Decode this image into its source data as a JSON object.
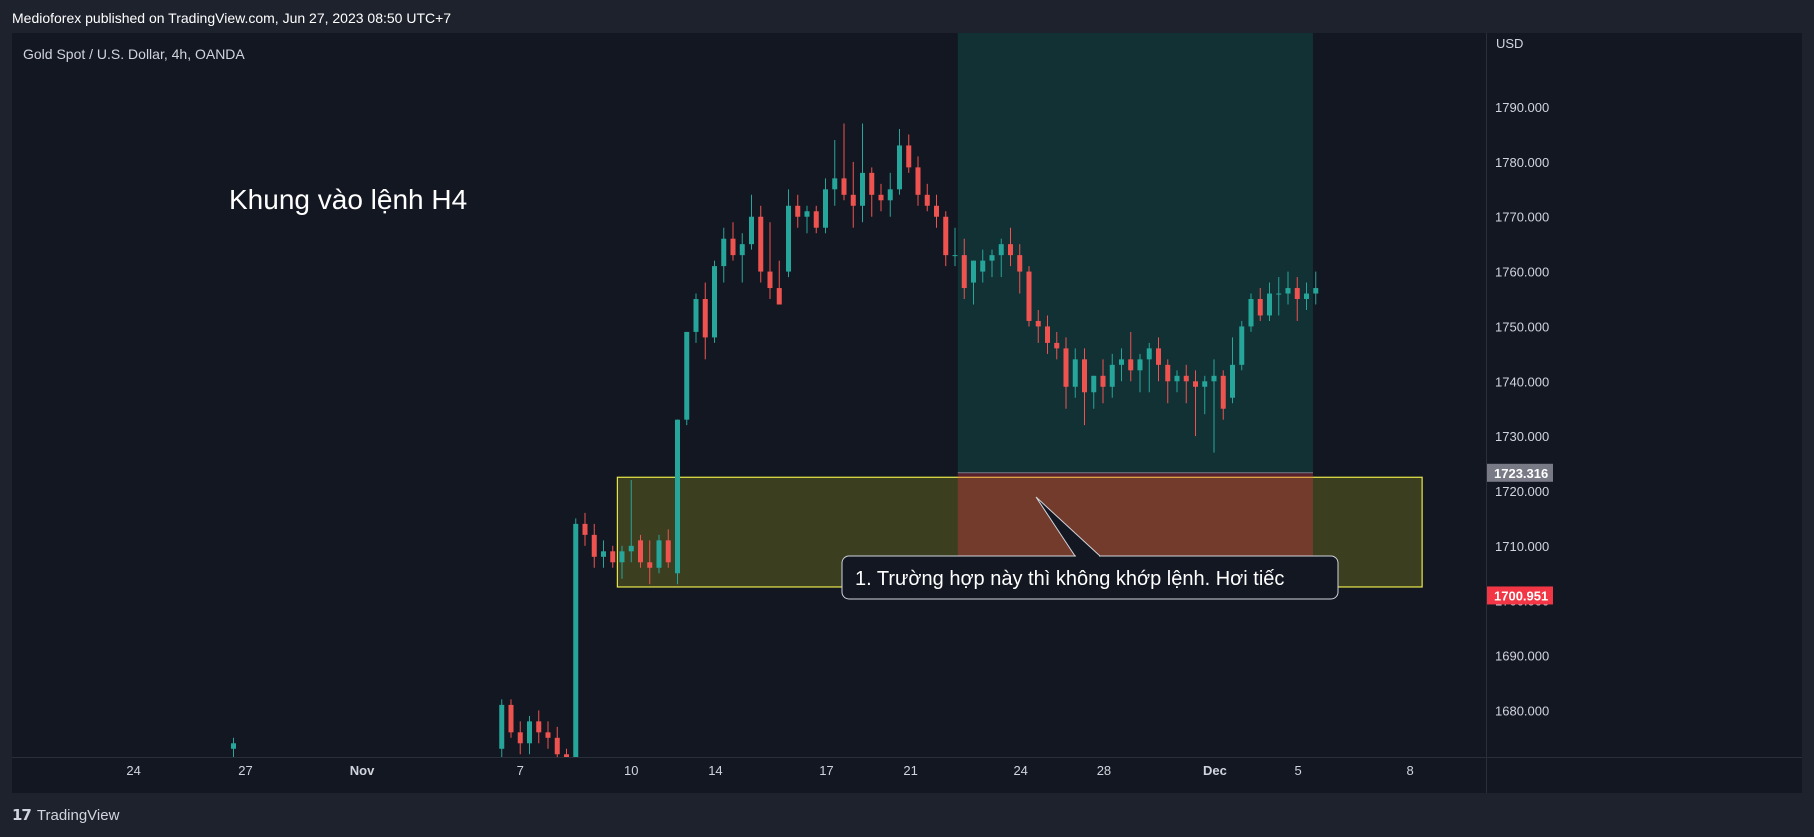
{
  "header": {
    "publisher_line": "Medioforex published on TradingView.com, Jun 27, 2023 08:50 UTC+7"
  },
  "footer": {
    "brand": "TradingView",
    "brand_icon": "tradingview-logo-icon"
  },
  "chart_data": {
    "type": "candlestick",
    "symbol_line": "Gold Spot / U.S. Dollar, 4h, OANDA",
    "currency_label": "USD",
    "overlay_title": "Khung vào lệnh H4",
    "callout_text": "1. Trường hợp này thì không khớp lệnh. Hơi tiếc",
    "ylim": [
      1671.5,
      1803.5
    ],
    "y_ticks": [
      {
        "value": 1680,
        "label": "1680.000"
      },
      {
        "value": 1690,
        "label": "1690.000"
      },
      {
        "value": 1700,
        "label": "1700.000"
      },
      {
        "value": 1710,
        "label": "1710.000"
      },
      {
        "value": 1720,
        "label": "1720.000"
      },
      {
        "value": 1730,
        "label": "1730.000"
      },
      {
        "value": 1740,
        "label": "1740.000"
      },
      {
        "value": 1750,
        "label": "1750.000"
      },
      {
        "value": 1760,
        "label": "1760.000"
      },
      {
        "value": 1770,
        "label": "1770.000"
      },
      {
        "value": 1780,
        "label": "1780.000"
      },
      {
        "value": 1790,
        "label": "1790.000"
      }
    ],
    "x_ticks": [
      {
        "bar": -40.8,
        "label": "24",
        "bold": false
      },
      {
        "bar": -28.7,
        "label": "27",
        "bold": false
      },
      {
        "bar": -16.1,
        "label": "Nov",
        "bold": true
      },
      {
        "bar": 1,
        "label": "7",
        "bold": false
      },
      {
        "bar": 13,
        "label": "10",
        "bold": false
      },
      {
        "bar": 22.1,
        "label": "14",
        "bold": false
      },
      {
        "bar": 34.1,
        "label": "17",
        "bold": false
      },
      {
        "bar": 43.2,
        "label": "21",
        "bold": false
      },
      {
        "bar": 55.1,
        "label": "24",
        "bold": false
      },
      {
        "bar": 64.1,
        "label": "28",
        "bold": false
      },
      {
        "bar": 76.1,
        "label": "Dec",
        "bold": true
      },
      {
        "bar": 85.1,
        "label": "5",
        "bold": false
      },
      {
        "bar": 97.2,
        "label": "8",
        "bold": false
      }
    ],
    "price_labels": [
      {
        "value": 1723.316,
        "label": "1723.316",
        "color": "#787b86"
      },
      {
        "value": 1700.951,
        "label": "1700.951",
        "color": "#f23645"
      }
    ],
    "zone": {
      "start_bar": 11.5,
      "end_bar": 98.5,
      "low": 1702.5,
      "high": 1722.5
    },
    "position": {
      "start_bar": 48.3,
      "end_bar": 86.7,
      "entry": 1723.316,
      "stop": 1700.951,
      "target": 1803.5
    },
    "colors": {
      "up": "#26a69a",
      "down": "#ef5350",
      "zone_border": "#e8e84a"
    },
    "candles": [
      [
        -30,
        1673,
        1675,
        1671.5,
        1674
      ],
      [
        -1,
        1673,
        1682,
        1670,
        1681
      ],
      [
        0,
        1681,
        1682,
        1675,
        1676
      ],
      [
        1,
        1676,
        1678,
        1672,
        1674
      ],
      [
        2,
        1674,
        1679,
        1672,
        1678
      ],
      [
        3,
        1678,
        1680,
        1674,
        1676
      ],
      [
        4,
        1676,
        1678,
        1673,
        1675
      ],
      [
        5,
        1675,
        1677,
        1670,
        1672
      ],
      [
        6,
        1672,
        1673,
        1668,
        1670
      ],
      [
        7,
        1670,
        1715,
        1669,
        1714
      ],
      [
        8,
        1714,
        1716,
        1710,
        1712
      ],
      [
        9,
        1712,
        1714,
        1706,
        1708
      ],
      [
        10,
        1708,
        1711,
        1706,
        1709
      ],
      [
        11,
        1709,
        1710,
        1706,
        1707
      ],
      [
        12,
        1707,
        1710,
        1704,
        1709
      ],
      [
        13,
        1709,
        1722,
        1707,
        1710
      ],
      [
        14,
        1711,
        1712,
        1706,
        1707
      ],
      [
        15,
        1707,
        1711,
        1703,
        1706
      ],
      [
        16,
        1706,
        1712,
        1705,
        1711
      ],
      [
        17,
        1711,
        1713,
        1706,
        1707
      ],
      [
        18,
        1705,
        1733,
        1703,
        1733
      ],
      [
        19,
        1733,
        1749,
        1732,
        1749
      ],
      [
        20,
        1749,
        1756,
        1747,
        1755
      ],
      [
        21,
        1755,
        1758,
        1744,
        1748
      ],
      [
        22,
        1748,
        1762,
        1747,
        1761
      ],
      [
        23,
        1761,
        1768,
        1758,
        1766
      ],
      [
        24,
        1766,
        1769,
        1762,
        1763
      ],
      [
        25,
        1763,
        1767,
        1758,
        1765
      ],
      [
        26,
        1765,
        1774,
        1764,
        1770
      ],
      [
        27,
        1770,
        1772,
        1758,
        1760
      ],
      [
        28,
        1760,
        1769,
        1755,
        1757
      ],
      [
        29,
        1757,
        1762,
        1754,
        1754
      ],
      [
        30,
        1760,
        1775,
        1759,
        1772
      ],
      [
        31,
        1772,
        1774,
        1768,
        1770
      ],
      [
        32,
        1770,
        1772,
        1767,
        1771
      ],
      [
        33,
        1771,
        1772,
        1767,
        1768
      ],
      [
        34,
        1768,
        1777,
        1767,
        1775
      ],
      [
        35,
        1775,
        1784,
        1772,
        1777
      ],
      [
        36,
        1777,
        1787,
        1773,
        1774
      ],
      [
        37,
        1774,
        1780,
        1768,
        1772
      ],
      [
        38,
        1772,
        1787,
        1769,
        1778
      ],
      [
        39,
        1778,
        1779,
        1770,
        1774
      ],
      [
        40,
        1774,
        1776,
        1771,
        1773
      ],
      [
        41,
        1773,
        1778,
        1770,
        1775
      ],
      [
        42,
        1775,
        1786,
        1774,
        1783
      ],
      [
        43,
        1783,
        1785,
        1778,
        1779
      ],
      [
        44,
        1779,
        1781,
        1772,
        1774
      ],
      [
        45,
        1774,
        1776,
        1771,
        1772
      ],
      [
        46,
        1772,
        1774,
        1768,
        1770
      ],
      [
        47,
        1770,
        1771,
        1761,
        1763
      ],
      [
        48,
        1763,
        1768,
        1761,
        1763
      ],
      [
        49,
        1763,
        1766,
        1755,
        1757
      ],
      [
        50,
        1758,
        1762,
        1754,
        1762
      ],
      [
        51,
        1760,
        1764,
        1758,
        1762
      ],
      [
        52,
        1762,
        1764,
        1759,
        1763
      ],
      [
        53,
        1763,
        1766,
        1759,
        1765
      ],
      [
        54,
        1765,
        1768,
        1761,
        1763
      ],
      [
        55,
        1763,
        1765,
        1756,
        1760
      ],
      [
        56,
        1760,
        1761,
        1750,
        1751
      ],
      [
        57,
        1751,
        1753,
        1747,
        1750
      ],
      [
        58,
        1750,
        1752,
        1745,
        1747
      ],
      [
        59,
        1747,
        1749,
        1744,
        1746
      ],
      [
        60,
        1746,
        1748,
        1735,
        1739
      ],
      [
        61,
        1739,
        1746,
        1737,
        1744
      ],
      [
        62,
        1744,
        1746,
        1732,
        1738
      ],
      [
        63,
        1738,
        1741,
        1735,
        1741
      ],
      [
        64,
        1741,
        1744,
        1736,
        1739
      ],
      [
        65,
        1739,
        1745,
        1737,
        1743
      ],
      [
        66,
        1743,
        1746,
        1740,
        1744
      ],
      [
        67,
        1744,
        1749,
        1740,
        1742
      ],
      [
        68,
        1742,
        1745,
        1738,
        1744
      ],
      [
        69,
        1744,
        1747,
        1738,
        1746
      ],
      [
        70,
        1746,
        1748,
        1740,
        1743
      ],
      [
        71,
        1743,
        1744,
        1736,
        1740
      ],
      [
        72,
        1740,
        1742,
        1738,
        1741
      ],
      [
        73,
        1741,
        1743,
        1736,
        1740
      ],
      [
        74,
        1740,
        1742,
        1730,
        1739
      ],
      [
        75,
        1739,
        1741,
        1734,
        1740
      ],
      [
        76,
        1740,
        1744,
        1727,
        1741
      ],
      [
        77,
        1741,
        1742,
        1733,
        1735
      ],
      [
        78,
        1737,
        1748,
        1736,
        1743
      ],
      [
        79,
        1743,
        1751,
        1742,
        1750
      ],
      [
        80,
        1750,
        1756,
        1749,
        1755
      ],
      [
        81,
        1755,
        1757,
        1751,
        1752
      ],
      [
        82,
        1752,
        1758,
        1751,
        1756
      ],
      [
        83,
        1756,
        1759,
        1752,
        1756
      ],
      [
        84,
        1756,
        1760,
        1754,
        1757
      ],
      [
        85,
        1757,
        1759,
        1751,
        1755
      ],
      [
        86,
        1755,
        1758,
        1753,
        1756
      ],
      [
        87,
        1756,
        1760,
        1754,
        1757
      ]
    ]
  }
}
